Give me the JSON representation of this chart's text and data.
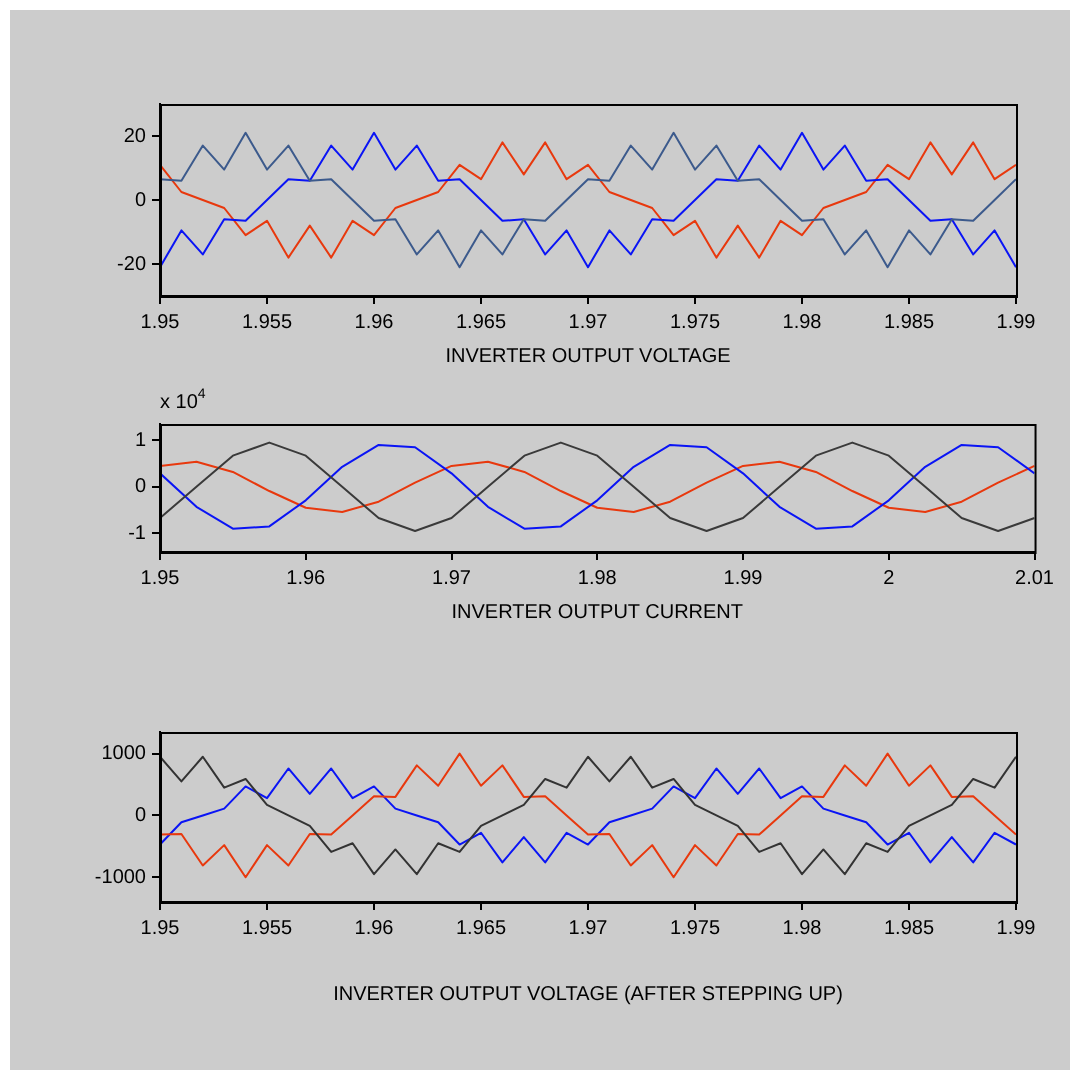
{
  "chart_data": [
    {
      "type": "line",
      "xlabel": "INVERTER OUTPUT VOLTAGE",
      "x": [
        1.95,
        1.951,
        1.952,
        1.953,
        1.954,
        1.955,
        1.956,
        1.957,
        1.958,
        1.959,
        1.96,
        1.961,
        1.962,
        1.963,
        1.964,
        1.965,
        1.966,
        1.967,
        1.968,
        1.969,
        1.97,
        1.971,
        1.972,
        1.973,
        1.974,
        1.975,
        1.976,
        1.977,
        1.978,
        1.979,
        1.98,
        1.981,
        1.982,
        1.983,
        1.984,
        1.985,
        1.986,
        1.987,
        1.988,
        1.989,
        1.99
      ],
      "xlim": [
        1.95,
        1.99
      ],
      "xticks": [
        1.95,
        1.955,
        1.96,
        1.965,
        1.97,
        1.975,
        1.98,
        1.985,
        1.99
      ],
      "ylim": [
        -30,
        30
      ],
      "yticks": [
        -20,
        0,
        20
      ],
      "grid": false,
      "legend": false,
      "marker": "none",
      "line_style": "solid",
      "series": [
        {
          "color": "#3c5a8c",
          "values": [
            6.5,
            6,
            17,
            9.5,
            21,
            9.5,
            17,
            6,
            6.5,
            0,
            -6.5,
            -6,
            -17,
            -9.5,
            -21,
            -9.5,
            -17,
            -6,
            -6.5,
            0,
            6.5,
            6,
            17,
            9.5,
            21,
            9.5,
            17,
            6,
            6.5,
            0,
            -6.5,
            -6,
            -17,
            -9.5,
            -21,
            -9.5,
            -17,
            -6,
            -6.5,
            0,
            6.5
          ]
        },
        {
          "color": "#0a14f5",
          "values": [
            -21,
            -9.5,
            -17,
            -6,
            -6.5,
            0,
            6.5,
            6,
            17,
            9.5,
            21,
            9.5,
            17,
            6,
            6.5,
            0,
            -6.5,
            -6,
            -17,
            -9.5,
            -21,
            -9.5,
            -17,
            -6,
            -6.5,
            0,
            6.5,
            6,
            17,
            9.5,
            21,
            9.5,
            17,
            6,
            6.5,
            0,
            -6.5,
            -6,
            -17,
            -9.5,
            -21
          ]
        },
        {
          "color": "#e8380d",
          "values": [
            11,
            2.5,
            0,
            -2.5,
            -11,
            -6.5,
            -18,
            -8,
            -18,
            -6.5,
            -11,
            -2.5,
            0,
            2.5,
            11,
            6.5,
            18,
            8,
            18,
            6.5,
            11,
            2.5,
            0,
            -2.5,
            -11,
            -6.5,
            -18,
            -8,
            -18,
            -6.5,
            -11,
            -2.5,
            0,
            2.5,
            11,
            6.5,
            18,
            8,
            18,
            6.5,
            11
          ]
        }
      ]
    },
    {
      "type": "line",
      "xlabel": "INVERTER OUTPUT CURRENT",
      "annotations": [
        "x 10$^{4}$"
      ],
      "x": [
        1.95,
        1.9525,
        1.955,
        1.9575,
        1.96,
        1.9625,
        1.965,
        1.9675,
        1.97,
        1.9725,
        1.975,
        1.9775,
        1.98,
        1.9825,
        1.985,
        1.9875,
        1.99,
        1.9925,
        1.995,
        1.9975,
        2,
        2.0025,
        2.005,
        2.0075,
        2.01
      ],
      "xlim": [
        1.95,
        2.01
      ],
      "xticks": [
        1.95,
        1.96,
        1.97,
        1.98,
        1.99,
        2,
        2.01
      ],
      "ylim": [
        -1.4,
        1.35
      ],
      "yticks": [
        -1,
        0,
        1
      ],
      "grid": false,
      "legend": false,
      "marker": "none",
      "line_style": "solid",
      "series": [
        {
          "color": "#3a3a3a",
          "values": [
            -0.67,
            0,
            0.67,
            0.95,
            0.67,
            0,
            -0.67,
            -0.95,
            -0.67,
            0,
            0.67,
            0.95,
            0.67,
            0,
            -0.67,
            -0.95,
            -0.67,
            0,
            0.67,
            0.95,
            0.67,
            0,
            -0.67,
            -0.95,
            -0.67
          ]
        },
        {
          "color": "#0a14f5",
          "values": [
            0.29,
            -0.43,
            -0.9,
            -0.85,
            -0.29,
            0.43,
            0.9,
            0.85,
            0.29,
            -0.43,
            -0.9,
            -0.85,
            -0.29,
            0.43,
            0.9,
            0.85,
            0.29,
            -0.43,
            -0.9,
            -0.85,
            -0.29,
            0.43,
            0.9,
            0.85,
            0.29
          ]
        },
        {
          "color": "#e8380d",
          "values": [
            0.45,
            0.54,
            0.32,
            -0.09,
            -0.45,
            -0.54,
            -0.32,
            0.09,
            0.45,
            0.54,
            0.32,
            -0.09,
            -0.45,
            -0.54,
            -0.32,
            0.09,
            0.45,
            0.54,
            0.32,
            -0.09,
            -0.45,
            -0.54,
            -0.32,
            0.09,
            0.45
          ]
        }
      ]
    },
    {
      "type": "line",
      "xlabel": "INVERTER OUTPUT VOLTAGE (AFTER STEPPING UP)",
      "x": [
        1.95,
        1.951,
        1.952,
        1.953,
        1.954,
        1.955,
        1.956,
        1.957,
        1.958,
        1.959,
        1.96,
        1.961,
        1.962,
        1.963,
        1.964,
        1.965,
        1.966,
        1.967,
        1.968,
        1.969,
        1.97,
        1.971,
        1.972,
        1.973,
        1.974,
        1.975,
        1.976,
        1.977,
        1.978,
        1.979,
        1.98,
        1.981,
        1.982,
        1.983,
        1.984,
        1.985,
        1.986,
        1.987,
        1.988,
        1.989,
        1.99
      ],
      "xlim": [
        1.95,
        1.99
      ],
      "xticks": [
        1.95,
        1.955,
        1.96,
        1.965,
        1.97,
        1.975,
        1.98,
        1.985,
        1.99
      ],
      "ylim": [
        -1400,
        1350
      ],
      "yticks": [
        -1000,
        0,
        1000
      ],
      "grid": false,
      "legend": false,
      "marker": "none",
      "line_style": "solid",
      "series": [
        {
          "color": "#333333",
          "values": [
            950,
            550,
            950,
            450,
            590,
            170,
            0,
            -170,
            -590,
            -450,
            -950,
            -550,
            -950,
            -450,
            -590,
            -170,
            0,
            170,
            590,
            450,
            950,
            550,
            950,
            450,
            590,
            170,
            0,
            -170,
            -590,
            -450,
            -950,
            -550,
            -950,
            -450,
            -590,
            -170,
            0,
            170,
            590,
            450,
            950
          ]
        },
        {
          "color": "#e8380d",
          "values": [
            -310,
            -300,
            -810,
            -480,
            -1000,
            -480,
            -810,
            -300,
            -310,
            0,
            310,
            300,
            810,
            480,
            1000,
            480,
            810,
            300,
            310,
            0,
            -310,
            -300,
            -810,
            -480,
            -1000,
            -480,
            -810,
            -300,
            -310,
            0,
            310,
            300,
            810,
            480,
            1000,
            480,
            810,
            300,
            310,
            0,
            -310
          ]
        },
        {
          "color": "#0a14f5",
          "values": [
            -470,
            -110,
            0,
            110,
            470,
            280,
            760,
            350,
            760,
            280,
            470,
            110,
            0,
            -110,
            -470,
            -280,
            -760,
            -350,
            -760,
            -280,
            -470,
            -110,
            0,
            110,
            470,
            280,
            760,
            350,
            760,
            280,
            470,
            110,
            0,
            -110,
            -470,
            -280,
            -760,
            -350,
            -760,
            -280,
            -470
          ]
        }
      ]
    }
  ]
}
